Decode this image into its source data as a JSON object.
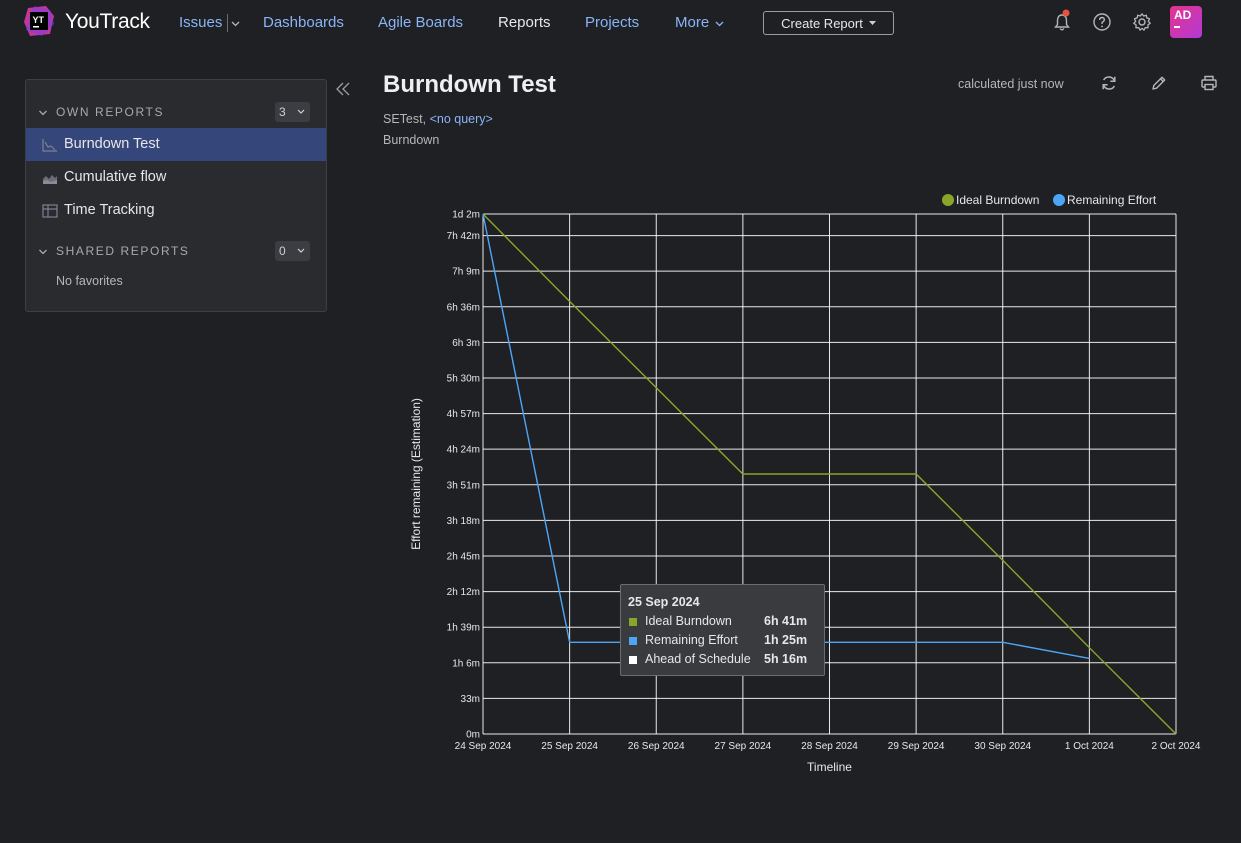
{
  "app": {
    "logo_letters": "YT",
    "name": "YouTrack",
    "nav": [
      {
        "label": "Issues"
      },
      {
        "label": "Dashboards"
      },
      {
        "label": "Agile Boards"
      },
      {
        "label": "Reports"
      },
      {
        "label": "Projects"
      },
      {
        "label": "More"
      }
    ],
    "create_report_label": "Create Report",
    "avatar_initials": "AD",
    "notification_dot_color": "#e5533d",
    "accent": "#8ab4f8"
  },
  "sidebar": {
    "own": {
      "title": "OWN REPORTS",
      "count": "3"
    },
    "reports": [
      {
        "label": "Burndown Test",
        "icon": "burndown-chart-icon"
      },
      {
        "label": "Cumulative flow",
        "icon": "area-chart-icon"
      },
      {
        "label": "Time Tracking",
        "icon": "table-icon"
      }
    ],
    "shared": {
      "title": "SHARED REPORTS",
      "count": "0",
      "empty": "No favorites"
    }
  },
  "report": {
    "title": "Burndown Test",
    "project": "SETest,",
    "query": "<no query>",
    "type": "Burndown",
    "calculated": "calculated just now"
  },
  "chart_data": {
    "type": "line",
    "xlabel": "Timeline",
    "ylabel": "Effort remaining (Estimation)",
    "x": [
      "24 Sep 2024",
      "25 Sep 2024",
      "26 Sep 2024",
      "27 Sep 2024",
      "28 Sep 2024",
      "29 Sep 2024",
      "30 Sep 2024",
      "1 Oct 2024",
      "2 Oct 2024"
    ],
    "y_tick_labels": [
      "0m",
      "33m",
      "1h 6m",
      "1h 39m",
      "2h 12m",
      "2h 45m",
      "3h 18m",
      "3h 51m",
      "4h 24m",
      "4h 57m",
      "5h 30m",
      "6h 3m",
      "6h 36m",
      "7h 9m",
      "7h 42m",
      "1d 2m"
    ],
    "y_tick_values_min": [
      0,
      33,
      66,
      99,
      132,
      165,
      198,
      231,
      264,
      297,
      330,
      363,
      396,
      429,
      462,
      482
    ],
    "ylim": [
      0,
      482
    ],
    "grid": true,
    "legend_position": "top-right",
    "series": [
      {
        "name": "Ideal Burndown",
        "color": "#8aa62a",
        "values": [
          482,
          401,
          321,
          241,
          241,
          241,
          161,
          80,
          0
        ]
      },
      {
        "name": "Remaining Effort",
        "color": "#4da6f5",
        "values": [
          482,
          85,
          85,
          85,
          85,
          85,
          85,
          70,
          null
        ]
      }
    ],
    "tooltip": {
      "date": "25 Sep 2024",
      "rows": [
        {
          "name": "Ideal Burndown",
          "value": "6h 41m",
          "color": "#8aa62a"
        },
        {
          "name": "Remaining Effort",
          "value": "1h 25m",
          "color": "#4da6f5"
        },
        {
          "name": "Ahead of Schedule",
          "value": "5h 16m",
          "color": "#ffffff"
        }
      ]
    }
  }
}
